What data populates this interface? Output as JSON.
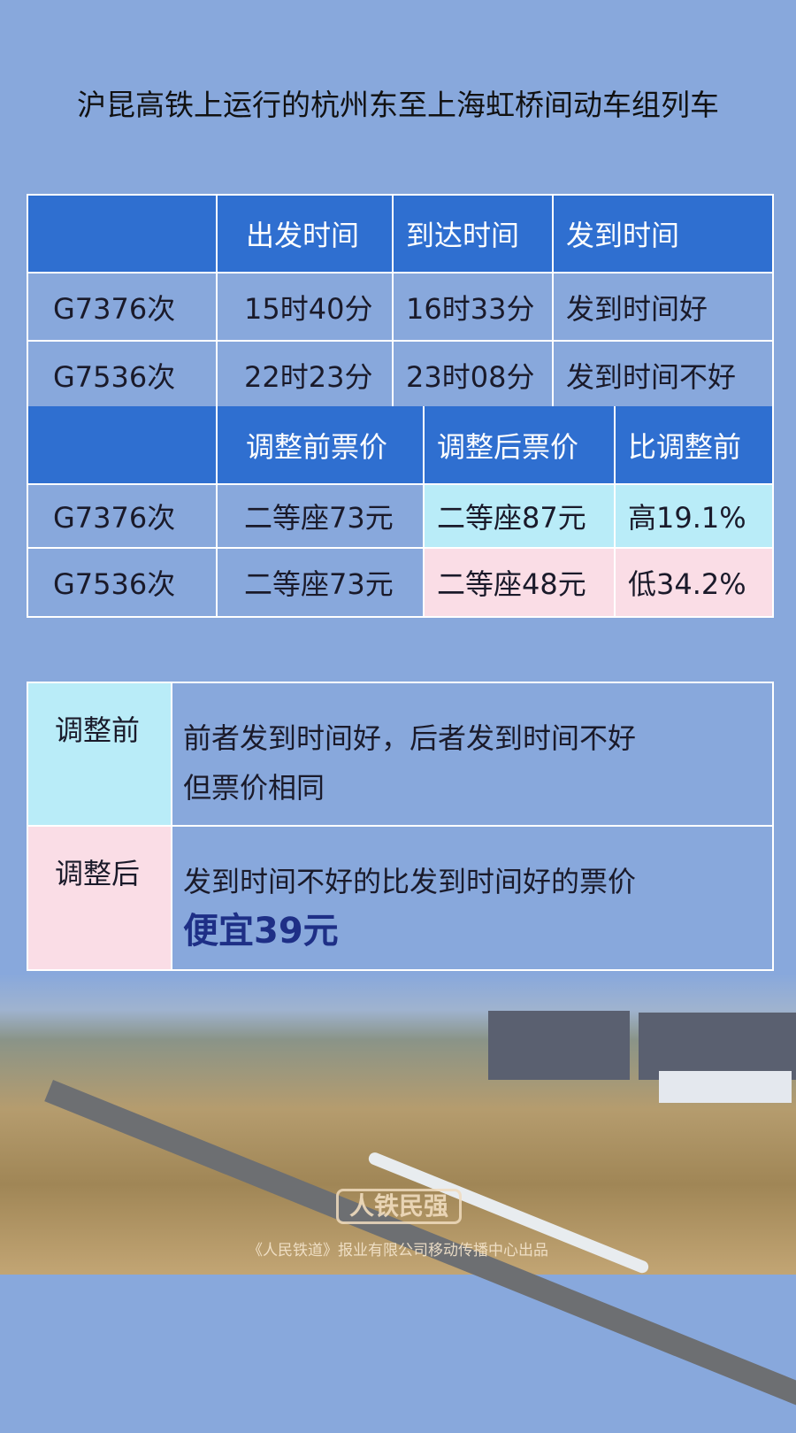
{
  "title": "沪昆高铁上运行的杭州东至上海虹桥间动车组列车",
  "schedule": {
    "headers": [
      "",
      "出发时间",
      "到达时间",
      "发到时间"
    ],
    "rows": [
      [
        "G7376次",
        "15时40分",
        "16时33分",
        "发到时间好"
      ],
      [
        "G7536次",
        "22时23分",
        "23时08分",
        "发到时间不好"
      ]
    ]
  },
  "prices": {
    "headers": [
      "",
      "调整前票价",
      "调整后票价",
      "比调整前"
    ],
    "rows": [
      [
        "G7376次",
        "二等座73元",
        "二等座87元",
        "高19.1%"
      ],
      [
        "G7536次",
        "二等座73元",
        "二等座48元",
        "低34.2%"
      ]
    ]
  },
  "summary": {
    "before_label": "调整前",
    "before_line1": "前者发到时间好，后者发到时间不好",
    "before_line2": "但票价相同",
    "after_label": "调整后",
    "after_line1": "发到时间不好的比发到时间好的票价",
    "after_highlight": "便宜39元"
  },
  "footer": {
    "logo": "人铁民强",
    "credit": "《人民铁道》报业有限公司移动传播中心出品"
  },
  "colors": {
    "background": "#88a8dc",
    "header": "#2f6fd0",
    "increase": "#b9ecf8",
    "decrease": "#fadde6",
    "highlight": "#1e2f86"
  }
}
